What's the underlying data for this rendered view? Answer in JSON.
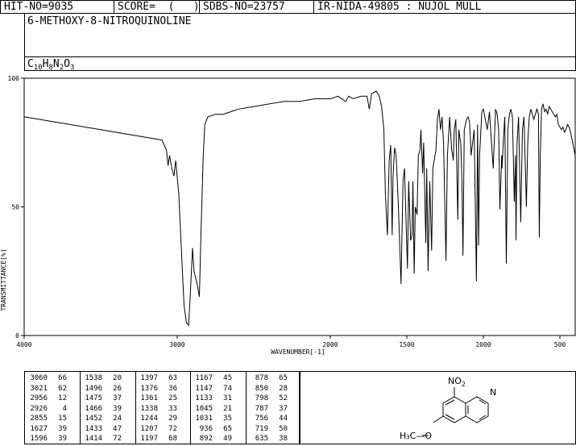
{
  "header": {
    "hit_no": "HIT-NO=9035",
    "score": "SCORE=  (   )",
    "sdbs_no": "SDBS-NO=23757",
    "ir_nida": "IR-NIDA-49805 : NUJOL MULL"
  },
  "compound": {
    "name": "6-METHOXY-8-NITROQUINOLINE",
    "formula_parts": [
      {
        "t": "C",
        "sub": false
      },
      {
        "t": "10",
        "sub": true
      },
      {
        "t": "H",
        "sub": false
      },
      {
        "t": "8",
        "sub": true
      },
      {
        "t": "N",
        "sub": false
      },
      {
        "t": "2",
        "sub": true
      },
      {
        "t": "O",
        "sub": false
      },
      {
        "t": "3",
        "sub": true
      }
    ]
  },
  "chart_data": {
    "type": "line",
    "xlabel": "WAVENUMBER[-1]",
    "ylabel": "TRANSMITTANCE[%]",
    "xlim": [
      4000,
      400
    ],
    "ylim": [
      0,
      100
    ],
    "x_ticks": [
      4000,
      3000,
      2000,
      1500,
      1000,
      500
    ],
    "y_ticks": [
      0,
      50,
      100
    ],
    "series": [
      {
        "points": [
          [
            4000,
            85
          ],
          [
            3900,
            84
          ],
          [
            3800,
            83
          ],
          [
            3700,
            82
          ],
          [
            3600,
            81
          ],
          [
            3500,
            80
          ],
          [
            3400,
            79
          ],
          [
            3300,
            78
          ],
          [
            3200,
            77
          ],
          [
            3100,
            76
          ],
          [
            3070,
            72
          ],
          [
            3060,
            66
          ],
          [
            3050,
            70
          ],
          [
            3035,
            65
          ],
          [
            3021,
            62
          ],
          [
            3010,
            68
          ],
          [
            2990,
            55
          ],
          [
            2970,
            30
          ],
          [
            2956,
            12
          ],
          [
            2940,
            5
          ],
          [
            2926,
            4
          ],
          [
            2915,
            15
          ],
          [
            2900,
            34
          ],
          [
            2890,
            25
          ],
          [
            2870,
            20
          ],
          [
            2855,
            15
          ],
          [
            2845,
            40
          ],
          [
            2830,
            70
          ],
          [
            2820,
            82
          ],
          [
            2800,
            85
          ],
          [
            2750,
            86
          ],
          [
            2700,
            86
          ],
          [
            2650,
            87
          ],
          [
            2600,
            88
          ],
          [
            2500,
            89
          ],
          [
            2400,
            90
          ],
          [
            2300,
            91
          ],
          [
            2200,
            91
          ],
          [
            2100,
            92
          ],
          [
            2000,
            92
          ],
          [
            1950,
            93
          ],
          [
            1900,
            91
          ],
          [
            1880,
            93
          ],
          [
            1850,
            92
          ],
          [
            1800,
            93
          ],
          [
            1760,
            93
          ],
          [
            1745,
            88
          ],
          [
            1730,
            94
          ],
          [
            1700,
            95
          ],
          [
            1680,
            93
          ],
          [
            1665,
            89
          ],
          [
            1650,
            80
          ],
          [
            1640,
            55
          ],
          [
            1627,
            39
          ],
          [
            1615,
            68
          ],
          [
            1605,
            74
          ],
          [
            1596,
            39
          ],
          [
            1590,
            62
          ],
          [
            1580,
            73
          ],
          [
            1570,
            70
          ],
          [
            1555,
            50
          ],
          [
            1538,
            20
          ],
          [
            1525,
            60
          ],
          [
            1515,
            65
          ],
          [
            1496,
            26
          ],
          [
            1488,
            60
          ],
          [
            1475,
            37
          ],
          [
            1466,
            39
          ],
          [
            1460,
            60
          ],
          [
            1452,
            24
          ],
          [
            1445,
            50
          ],
          [
            1433,
            47
          ],
          [
            1425,
            70
          ],
          [
            1414,
            72
          ],
          [
            1408,
            80
          ],
          [
            1397,
            63
          ],
          [
            1390,
            75
          ],
          [
            1376,
            36
          ],
          [
            1370,
            65
          ],
          [
            1361,
            25
          ],
          [
            1350,
            60
          ],
          [
            1338,
            33
          ],
          [
            1330,
            65
          ],
          [
            1310,
            72
          ],
          [
            1300,
            84
          ],
          [
            1290,
            88
          ],
          [
            1280,
            80
          ],
          [
            1270,
            85
          ],
          [
            1260,
            75
          ],
          [
            1244,
            29
          ],
          [
            1235,
            70
          ],
          [
            1220,
            85
          ],
          [
            1207,
            72
          ],
          [
            1200,
            70
          ],
          [
            1197,
            68
          ],
          [
            1190,
            80
          ],
          [
            1180,
            84
          ],
          [
            1167,
            45
          ],
          [
            1160,
            80
          ],
          [
            1147,
            74
          ],
          [
            1140,
            60
          ],
          [
            1133,
            31
          ],
          [
            1125,
            80
          ],
          [
            1110,
            84
          ],
          [
            1100,
            85
          ],
          [
            1090,
            83
          ],
          [
            1080,
            70
          ],
          [
            1060,
            80
          ],
          [
            1045,
            21
          ],
          [
            1038,
            82
          ],
          [
            1031,
            35
          ],
          [
            1025,
            70
          ],
          [
            1010,
            87
          ],
          [
            1000,
            88
          ],
          [
            990,
            85
          ],
          [
            975,
            80
          ],
          [
            960,
            87
          ],
          [
            936,
            65
          ],
          [
            920,
            88
          ],
          [
            910,
            86
          ],
          [
            900,
            80
          ],
          [
            892,
            49
          ],
          [
            880,
            70
          ],
          [
            878,
            65
          ],
          [
            870,
            75
          ],
          [
            860,
            85
          ],
          [
            850,
            28
          ],
          [
            840,
            80
          ],
          [
            830,
            86
          ],
          [
            820,
            88
          ],
          [
            810,
            85
          ],
          [
            798,
            52
          ],
          [
            790,
            70
          ],
          [
            787,
            37
          ],
          [
            780,
            75
          ],
          [
            770,
            85
          ],
          [
            756,
            44
          ],
          [
            745,
            80
          ],
          [
            735,
            85
          ],
          [
            719,
            50
          ],
          [
            710,
            75
          ],
          [
            700,
            85
          ],
          [
            690,
            88
          ],
          [
            680,
            86
          ],
          [
            670,
            84
          ],
          [
            660,
            86
          ],
          [
            650,
            88
          ],
          [
            640,
            86
          ],
          [
            635,
            38
          ],
          [
            628,
            70
          ],
          [
            620,
            88
          ],
          [
            610,
            90
          ],
          [
            600,
            87
          ],
          [
            590,
            88
          ],
          [
            580,
            86
          ],
          [
            570,
            89
          ],
          [
            560,
            88
          ],
          [
            550,
            87
          ],
          [
            540,
            86
          ],
          [
            530,
            85
          ],
          [
            520,
            86
          ],
          [
            510,
            82
          ],
          [
            500,
            81
          ],
          [
            490,
            80
          ],
          [
            480,
            81
          ],
          [
            470,
            79
          ],
          [
            460,
            80
          ],
          [
            450,
            82
          ],
          [
            440,
            81
          ],
          [
            430,
            79
          ],
          [
            420,
            76
          ],
          [
            410,
            73
          ],
          [
            400,
            70
          ]
        ]
      }
    ],
    "peak_table": [
      [
        [
          3060,
          66
        ],
        [
          3021,
          62
        ],
        [
          2956,
          12
        ],
        [
          2926,
          4
        ],
        [
          2855,
          15
        ],
        [
          1627,
          39
        ],
        [
          1596,
          39
        ]
      ],
      [
        [
          1538,
          20
        ],
        [
          1496,
          26
        ],
        [
          1475,
          37
        ],
        [
          1466,
          39
        ],
        [
          1452,
          24
        ],
        [
          1433,
          47
        ],
        [
          1414,
          72
        ]
      ],
      [
        [
          1397,
          63
        ],
        [
          1376,
          36
        ],
        [
          1361,
          25
        ],
        [
          1338,
          33
        ],
        [
          1244,
          29
        ],
        [
          1207,
          72
        ],
        [
          1197,
          68
        ]
      ],
      [
        [
          1167,
          45
        ],
        [
          1147,
          74
        ],
        [
          1133,
          31
        ],
        [
          1045,
          21
        ],
        [
          1031,
          35
        ],
        [
          936,
          65
        ],
        [
          892,
          49
        ]
      ],
      [
        [
          878,
          65
        ],
        [
          850,
          28
        ],
        [
          798,
          52
        ],
        [
          787,
          37
        ],
        [
          756,
          44
        ],
        [
          719,
          50
        ],
        [
          635,
          38
        ]
      ]
    ]
  },
  "structure": {
    "no2_label": "NO",
    "no2_sub": "2",
    "n_label": "N",
    "methoxy_label": "H₃C—O"
  }
}
